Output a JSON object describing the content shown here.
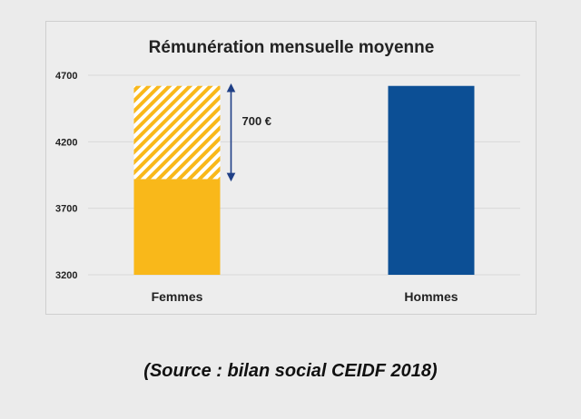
{
  "chart_data": {
    "type": "bar",
    "title": "Rémunération mensuelle moyenne",
    "categories": [
      "Femmes",
      "Hommes"
    ],
    "values": [
      3920,
      4620
    ],
    "gap": {
      "from": 3920,
      "to": 4620,
      "label": "700 €"
    },
    "ylim": [
      3200,
      4700
    ],
    "yticks": [
      3200,
      3700,
      4200,
      4700
    ],
    "grid": true,
    "colors": {
      "femmes": "#f9b81a",
      "gap_stripe": "#f9b81a",
      "hommes": "#0c4f95",
      "arrow": "#1f3f86",
      "grid": "#d9d9d9"
    }
  },
  "source": "(Source : bilan social CEIDF 2018)"
}
